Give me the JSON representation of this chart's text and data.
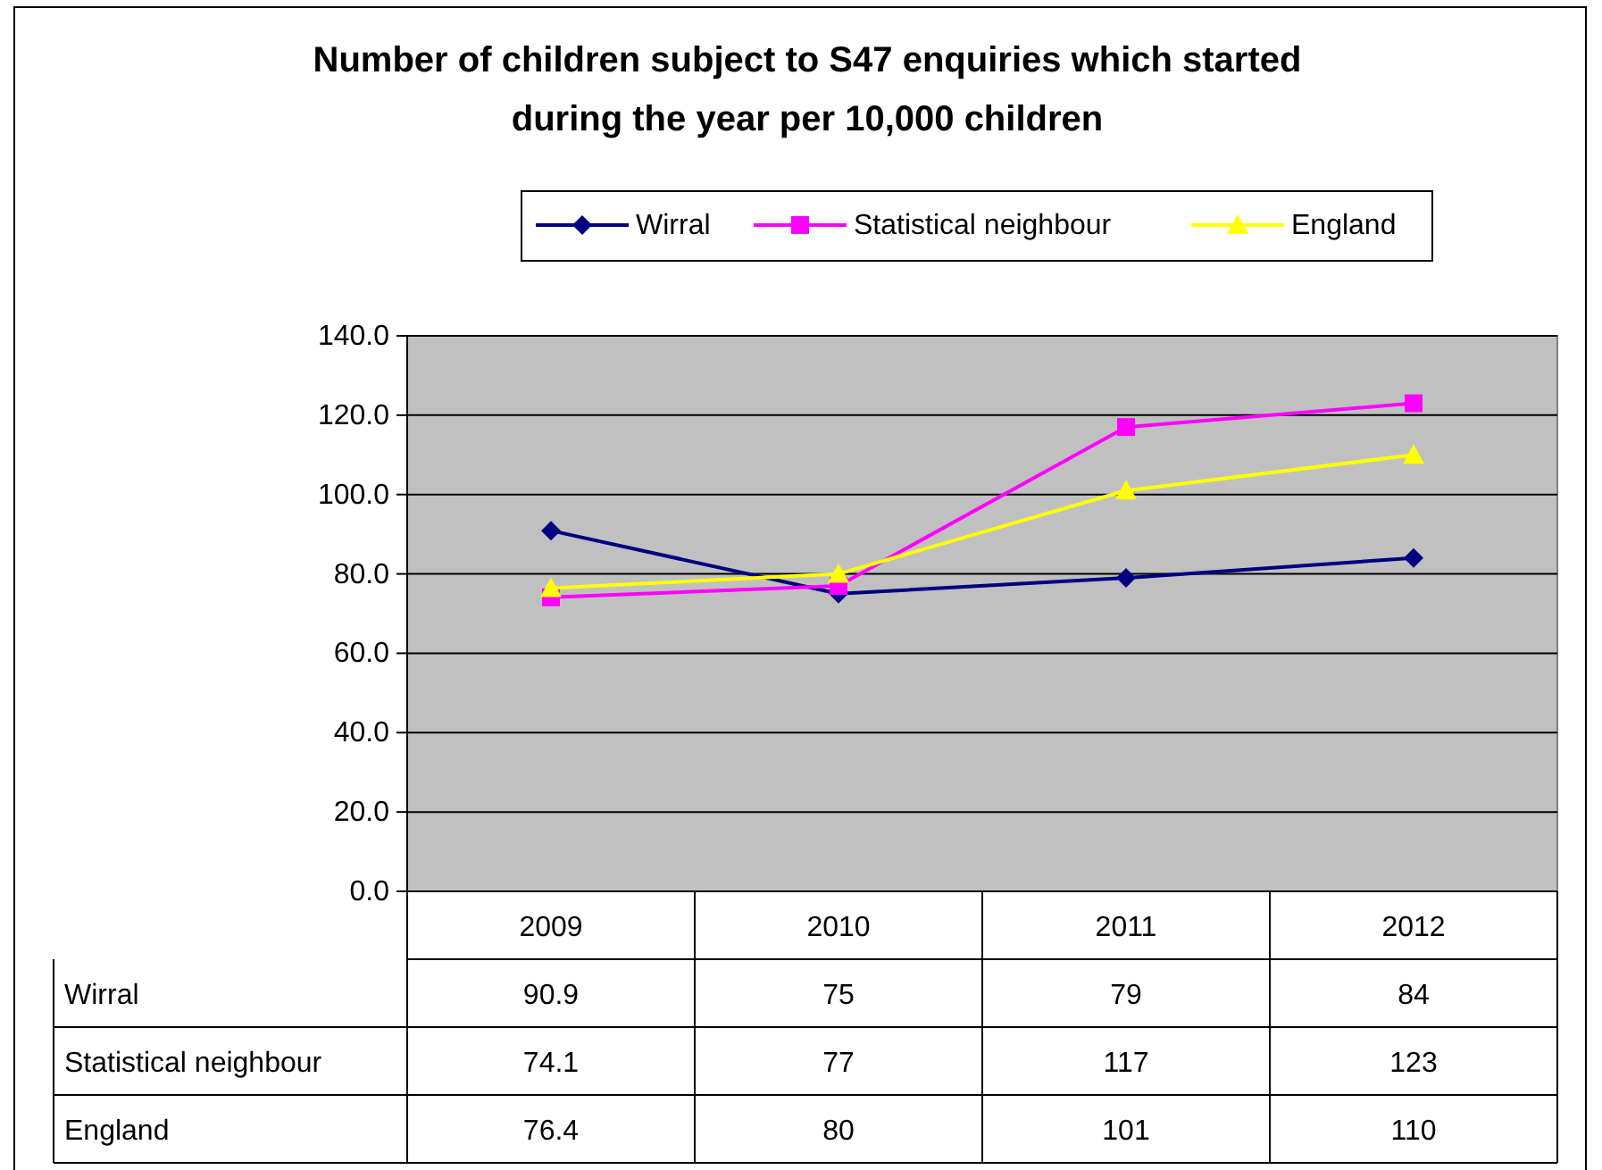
{
  "chart_data": {
    "type": "line",
    "title": "Number of children subject to S47 enquiries which started\nduring the year per 10,000 children",
    "categories": [
      "2009",
      "2010",
      "2011",
      "2012"
    ],
    "series": [
      {
        "name": "Wirral",
        "color": "#000080",
        "marker": "diamond",
        "values": [
          90.9,
          75,
          79,
          84
        ]
      },
      {
        "name": "Statistical neighbour",
        "color": "#ff00ff",
        "marker": "square",
        "values": [
          74.1,
          77,
          117,
          123
        ]
      },
      {
        "name": "England",
        "color": "#ffff00",
        "marker": "triangle",
        "values": [
          76.4,
          80,
          101,
          110
        ]
      }
    ],
    "ylim": [
      0,
      140
    ],
    "yticks": [
      {
        "value": 0,
        "label": "0.0"
      },
      {
        "value": 20,
        "label": "20.0"
      },
      {
        "value": 40,
        "label": "40.0"
      },
      {
        "value": 60,
        "label": "60.0"
      },
      {
        "value": 80,
        "label": "80.0"
      },
      {
        "value": 100,
        "label": "100.0"
      },
      {
        "value": 120,
        "label": "120.0"
      },
      {
        "value": 140,
        "label": "140.0"
      }
    ],
    "grid": "y",
    "legend": "top",
    "data_labels": true
  }
}
